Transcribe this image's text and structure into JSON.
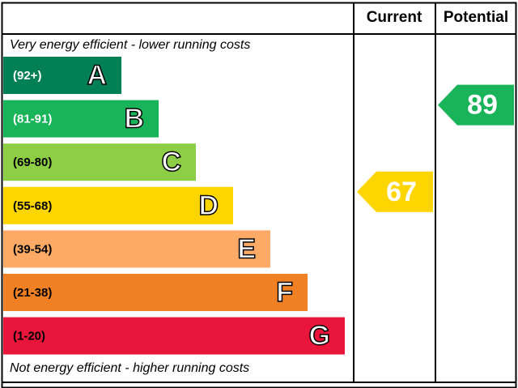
{
  "chart_data": {
    "type": "epc",
    "headers": [
      "Current",
      "Potential"
    ],
    "top_note": "Very energy efficient - lower running costs",
    "bottom_note": "Not energy efficient - higher running costs",
    "bands": [
      {
        "letter": "A",
        "range": "(92+)",
        "color": "#008054"
      },
      {
        "letter": "B",
        "range": "(81-91)",
        "color": "#19b459"
      },
      {
        "letter": "C",
        "range": "(69-80)",
        "color": "#8dce46"
      },
      {
        "letter": "D",
        "range": "(55-68)",
        "color": "#ffd500"
      },
      {
        "letter": "E",
        "range": "(39-54)",
        "color": "#fcaa65"
      },
      {
        "letter": "F",
        "range": "(21-38)",
        "color": "#ef8023"
      },
      {
        "letter": "G",
        "range": "(1-20)",
        "color": "#e9153b"
      }
    ],
    "current": 67,
    "potential": 89
  }
}
